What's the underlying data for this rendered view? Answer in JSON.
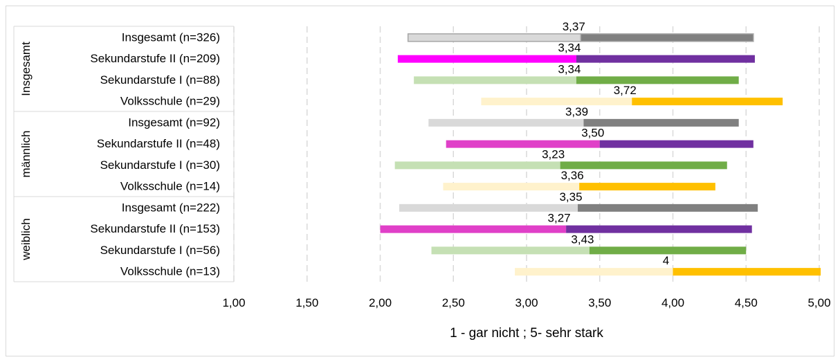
{
  "chart_data": {
    "type": "bar",
    "title": "",
    "xlabel": "1 - gar nicht ; 5- sehr stark",
    "ylabel": "",
    "xlim": [
      1,
      5
    ],
    "x_ticks": [
      "1,00",
      "1,50",
      "2,00",
      "2,50",
      "3,00",
      "3,50",
      "4,00",
      "4,50",
      "5,00"
    ],
    "x_tick_values": [
      1,
      1.5,
      2,
      2.5,
      3,
      3.5,
      4,
      4.5,
      5
    ],
    "grid": "dashed-vertical",
    "groups": [
      {
        "name": "Insgesamt",
        "rows": [
          {
            "label": "Insgesamt (n=326)",
            "min": 2.19,
            "mean": 3.37,
            "max": 4.55,
            "mean_label": "3,37",
            "palette": "gray"
          },
          {
            "label": "Sekundarstufe II (n=209)",
            "min": 2.12,
            "mean": 3.34,
            "max": 4.56,
            "mean_label": "3,34",
            "palette": "purple"
          },
          {
            "label": "Sekundarstufe I (n=88)",
            "min": 2.23,
            "mean": 3.34,
            "max": 4.45,
            "mean_label": "3,34",
            "palette": "green"
          },
          {
            "label": "Volksschule (n=29)",
            "min": 2.69,
            "mean": 3.72,
            "max": 4.75,
            "mean_label": "3,72",
            "palette": "yellow"
          }
        ]
      },
      {
        "name": "männlich",
        "rows": [
          {
            "label": "Insgesamt (n=92)",
            "min": 2.33,
            "mean": 3.39,
            "max": 4.45,
            "mean_label": "3,39",
            "palette": "gray"
          },
          {
            "label": "Sekundarstufe II (n=48)",
            "min": 2.45,
            "mean": 3.5,
            "max": 4.55,
            "mean_label": "3,50",
            "palette": "purple"
          },
          {
            "label": "Sekundarstufe I (n=30)",
            "min": 2.1,
            "mean": 3.23,
            "max": 4.37,
            "mean_label": "3,23",
            "palette": "green"
          },
          {
            "label": "Volksschule (n=14)",
            "min": 2.43,
            "mean": 3.36,
            "max": 4.29,
            "mean_label": "3,36",
            "palette": "yellow"
          }
        ]
      },
      {
        "name": "weiblich",
        "rows": [
          {
            "label": "Insgesamt (n=222)",
            "min": 2.13,
            "mean": 3.35,
            "max": 4.58,
            "mean_label": "3,35",
            "palette": "gray"
          },
          {
            "label": "Sekundarstufe II (n=153)",
            "min": 2.0,
            "mean": 3.27,
            "max": 4.54,
            "mean_label": "3,27",
            "palette": "purple"
          },
          {
            "label": "Sekundarstufe I (n=56)",
            "min": 2.35,
            "mean": 3.43,
            "max": 4.5,
            "mean_label": "3,43",
            "palette": "green"
          },
          {
            "label": "Volksschule (n=13)",
            "min": 2.92,
            "mean": 4.0,
            "max": 5.01,
            "mean_label": "4",
            "palette": "yellow"
          }
        ]
      }
    ],
    "colors": {
      "gray": {
        "low": "#d9d9d9",
        "high": "#808080"
      },
      "purple": {
        "low": "#e040c8",
        "high": "#7030a0"
      },
      "purple_first": {
        "low": "#ff00ff",
        "high": "#7030a0"
      },
      "green": {
        "low": "#c5e0b4",
        "high": "#70ad47"
      },
      "yellow": {
        "low": "#fff2cc",
        "high": "#ffc000"
      },
      "grid": "#d9d9d9",
      "frame": "#d9d9d9"
    }
  }
}
